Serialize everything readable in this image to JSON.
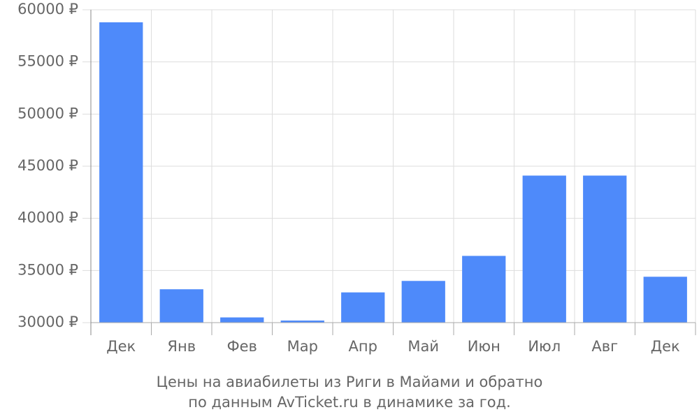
{
  "chart_data": {
    "type": "bar",
    "categories": [
      "Дек",
      "Янв",
      "Фев",
      "Мар",
      "Апр",
      "Май",
      "Июн",
      "Июл",
      "Авг",
      "Дек"
    ],
    "values": [
      58800,
      33200,
      30500,
      30200,
      32900,
      34000,
      36400,
      44100,
      44100,
      34400
    ],
    "color": "#4e8afa",
    "ylim": [
      30000,
      60000
    ],
    "yticks": [
      {
        "value": 30000,
        "label": "30000 ₽"
      },
      {
        "value": 35000,
        "label": "35000 ₽"
      },
      {
        "value": 40000,
        "label": "40000 ₽"
      },
      {
        "value": 45000,
        "label": "45000 ₽"
      },
      {
        "value": 50000,
        "label": "50000 ₽"
      },
      {
        "value": 55000,
        "label": "55000 ₽"
      },
      {
        "value": 60000,
        "label": "60000 ₽"
      }
    ],
    "grid": true,
    "caption": [
      "Цены на авиабилеты из Риги в Майами и обратно",
      "по данным AvTicket.ru в динамике за год."
    ]
  }
}
